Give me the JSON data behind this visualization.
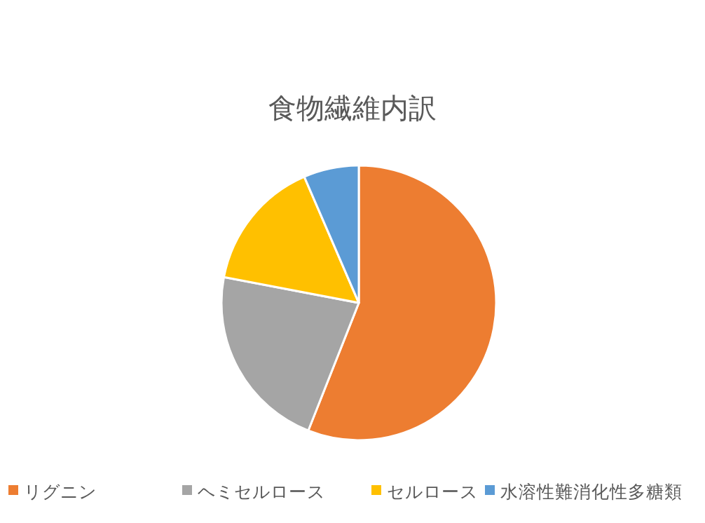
{
  "chart_data": {
    "type": "pie",
    "title": "食物繊維内訳",
    "categories": [
      "リグニン",
      "ヘミセルロース",
      "セルロース",
      "水溶性難消化性多糖類"
    ],
    "values": [
      56,
      22,
      15.5,
      6.5
    ],
    "colors": [
      "#ed7d31",
      "#a5a5a5",
      "#ffc000",
      "#5b9bd5"
    ],
    "legend": "bottom"
  }
}
